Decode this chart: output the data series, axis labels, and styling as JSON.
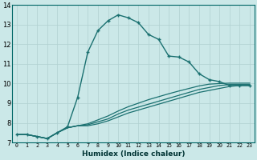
{
  "xlabel": "Humidex (Indice chaleur)",
  "xlim": [
    -0.5,
    23.5
  ],
  "ylim": [
    7,
    14
  ],
  "xticks": [
    0,
    1,
    2,
    3,
    4,
    5,
    6,
    7,
    8,
    9,
    10,
    11,
    12,
    13,
    14,
    15,
    16,
    17,
    18,
    19,
    20,
    21,
    22,
    23
  ],
  "yticks": [
    7,
    8,
    9,
    10,
    11,
    12,
    13,
    14
  ],
  "bg_color": "#cbe8e8",
  "line_color": "#1a7070",
  "grid_color": "#b0d0d0",
  "lines": [
    {
      "x": [
        0,
        1,
        2,
        3,
        4,
        5,
        6,
        7,
        8,
        9,
        10,
        11,
        12,
        13,
        14,
        15,
        16,
        17,
        18,
        19,
        20,
        21,
        22,
        23
      ],
      "y": [
        7.4,
        7.4,
        7.3,
        7.2,
        7.5,
        7.8,
        9.3,
        11.6,
        12.7,
        13.2,
        13.5,
        13.35,
        13.1,
        12.5,
        12.25,
        11.4,
        11.35,
        11.1,
        10.5,
        10.2,
        10.1,
        9.9,
        9.9,
        9.9
      ],
      "marker": true,
      "lw": 1.0
    },
    {
      "x": [
        0,
        1,
        2,
        3,
        4,
        5,
        6,
        7,
        8,
        9,
        10,
        11,
        12,
        13,
        14,
        15,
        16,
        17,
        18,
        19,
        20,
        21,
        22,
        23
      ],
      "y": [
        7.4,
        7.4,
        7.3,
        7.2,
        7.5,
        7.75,
        7.85,
        7.85,
        7.95,
        8.1,
        8.3,
        8.5,
        8.65,
        8.8,
        8.95,
        9.1,
        9.25,
        9.4,
        9.55,
        9.65,
        9.75,
        9.85,
        9.9,
        9.9
      ],
      "marker": false,
      "lw": 0.9
    },
    {
      "x": [
        0,
        1,
        2,
        3,
        4,
        5,
        6,
        7,
        8,
        9,
        10,
        11,
        12,
        13,
        14,
        15,
        16,
        17,
        18,
        19,
        20,
        21,
        22,
        23
      ],
      "y": [
        7.4,
        7.4,
        7.3,
        7.2,
        7.5,
        7.75,
        7.85,
        7.9,
        8.05,
        8.2,
        8.45,
        8.65,
        8.8,
        8.95,
        9.1,
        9.25,
        9.4,
        9.55,
        9.7,
        9.8,
        9.9,
        9.95,
        9.95,
        9.95
      ],
      "marker": false,
      "lw": 0.9
    },
    {
      "x": [
        0,
        1,
        2,
        3,
        4,
        5,
        6,
        7,
        8,
        9,
        10,
        11,
        12,
        13,
        14,
        15,
        16,
        17,
        18,
        19,
        20,
        21,
        22,
        23
      ],
      "y": [
        7.4,
        7.4,
        7.3,
        7.2,
        7.5,
        7.75,
        7.85,
        7.95,
        8.15,
        8.35,
        8.6,
        8.82,
        9.0,
        9.18,
        9.33,
        9.48,
        9.62,
        9.75,
        9.88,
        9.97,
        10.0,
        10.02,
        10.02,
        10.02
      ],
      "marker": false,
      "lw": 0.9
    }
  ]
}
